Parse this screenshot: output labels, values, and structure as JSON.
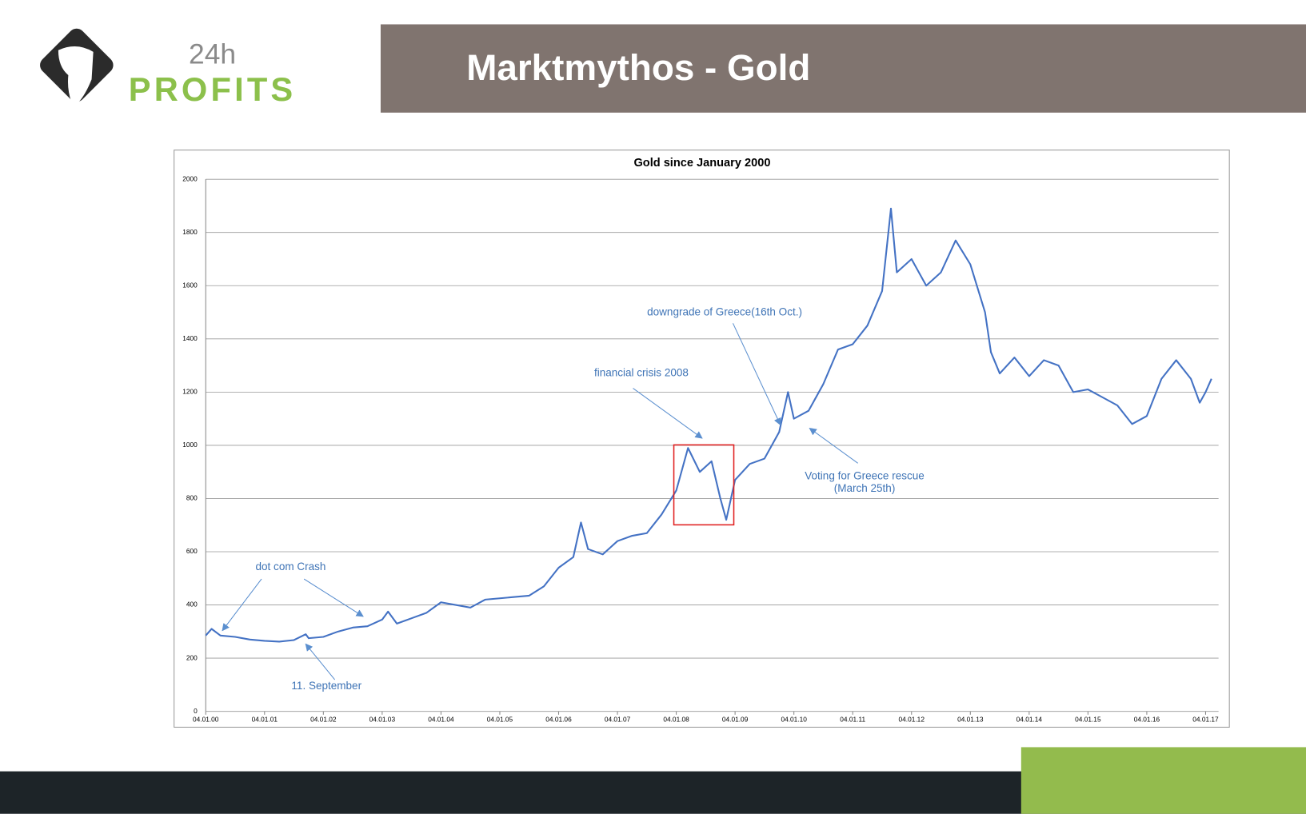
{
  "header": {
    "logo_top": "24h",
    "logo_bottom": "PROFITS",
    "title": "Marktmythos - Gold"
  },
  "chart_data": {
    "type": "line",
    "title": "Gold since January 2000",
    "x": [
      0,
      0.1,
      0.25,
      0.5,
      0.75,
      1.0,
      1.25,
      1.5,
      1.7,
      1.75,
      2.0,
      2.25,
      2.5,
      2.75,
      3.0,
      3.1,
      3.25,
      3.5,
      3.75,
      4.0,
      4.25,
      4.5,
      4.75,
      5.0,
      5.25,
      5.5,
      5.75,
      6.0,
      6.25,
      6.38,
      6.5,
      6.75,
      7.0,
      7.25,
      7.5,
      7.75,
      8.0,
      8.2,
      8.4,
      8.6,
      8.75,
      8.85,
      9.0,
      9.25,
      9.5,
      9.75,
      9.9,
      10.0,
      10.25,
      10.5,
      10.75,
      11.0,
      11.25,
      11.5,
      11.65,
      11.75,
      12.0,
      12.25,
      12.5,
      12.75,
      13.0,
      13.25,
      13.35,
      13.5,
      13.75,
      14.0,
      14.25,
      14.5,
      14.75,
      15.0,
      15.25,
      15.5,
      15.75,
      16.0,
      16.25,
      16.5,
      16.75,
      16.9,
      17.0,
      17.1
    ],
    "series": [
      {
        "name": "Gold",
        "color": "#4472c4",
        "values": [
          285,
          310,
          285,
          280,
          270,
          265,
          262,
          268,
          290,
          275,
          280,
          300,
          315,
          320,
          345,
          375,
          330,
          350,
          370,
          410,
          400,
          390,
          420,
          425,
          430,
          435,
          470,
          540,
          580,
          710,
          610,
          590,
          640,
          660,
          670,
          740,
          830,
          990,
          900,
          940,
          800,
          720,
          870,
          930,
          950,
          1050,
          1200,
          1100,
          1130,
          1230,
          1360,
          1380,
          1450,
          1580,
          1890,
          1650,
          1700,
          1600,
          1650,
          1770,
          1680,
          1500,
          1350,
          1270,
          1330,
          1260,
          1320,
          1300,
          1200,
          1210,
          1180,
          1150,
          1080,
          1110,
          1250,
          1320,
          1250,
          1160,
          1200,
          1250
        ]
      }
    ],
    "xlim": [
      0,
      17.22
    ],
    "xticks": [
      {
        "value": 0,
        "label": "04.01.00"
      },
      {
        "value": 1,
        "label": "04.01.01"
      },
      {
        "value": 2,
        "label": "04.01.02"
      },
      {
        "value": 3,
        "label": "04.01.03"
      },
      {
        "value": 4,
        "label": "04.01.04"
      },
      {
        "value": 5,
        "label": "04.01.05"
      },
      {
        "value": 6,
        "label": "04.01.06"
      },
      {
        "value": 7,
        "label": "04.01.07"
      },
      {
        "value": 8,
        "label": "04.01.08"
      },
      {
        "value": 9,
        "label": "04.01.09"
      },
      {
        "value": 10,
        "label": "04.01.10"
      },
      {
        "value": 11,
        "label": "04.01.11"
      },
      {
        "value": 12,
        "label": "04.01.12"
      },
      {
        "value": 13,
        "label": "04.01.13"
      },
      {
        "value": 14,
        "label": "04.01.14"
      },
      {
        "value": 15,
        "label": "04.01.15"
      },
      {
        "value": 16,
        "label": "04.01.16"
      },
      {
        "value": 17,
        "label": "04.01.17"
      }
    ],
    "ylim": [
      0,
      2000
    ],
    "yticks": [
      0,
      200,
      400,
      600,
      800,
      1000,
      1200,
      1400,
      1600,
      1800,
      2000
    ],
    "grid": true,
    "annotations": [
      "dot com Crash",
      "11. September",
      "financial crisis 2008",
      "downgrade of Greece(16th Oct.)",
      "Voting for Greece rescue",
      "(March 25th)"
    ]
  }
}
